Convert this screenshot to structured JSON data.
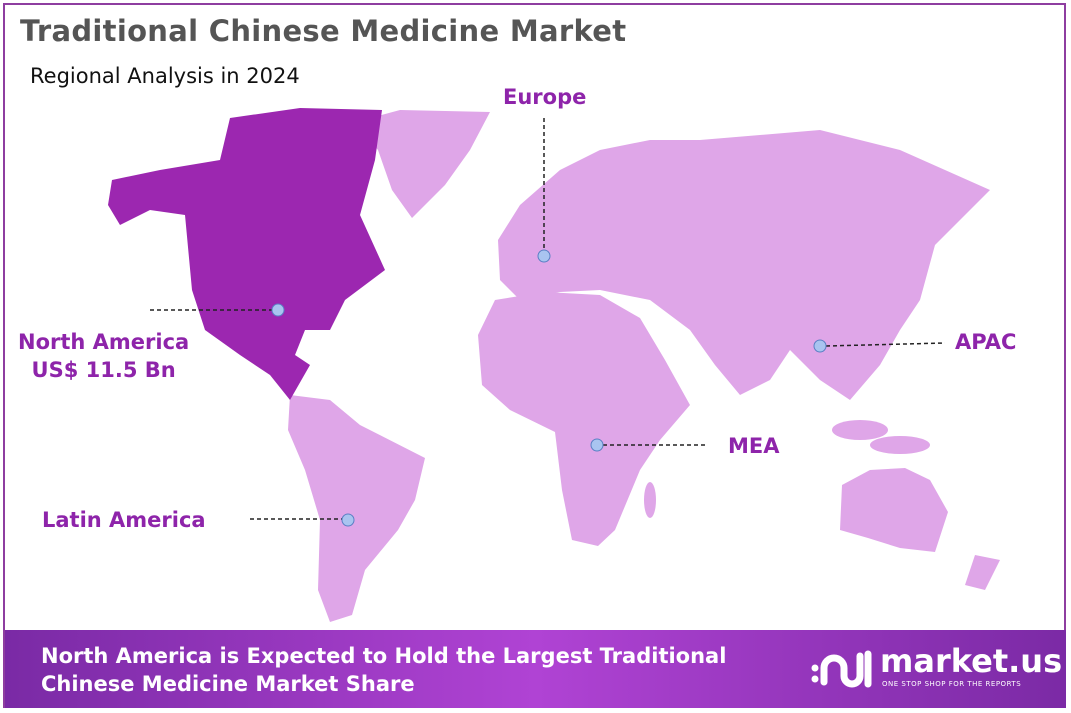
{
  "header": {
    "title": "Traditional Chinese Medicine Market",
    "subtitle": "Regional Analysis in 2024"
  },
  "regions": [
    {
      "name": "North America",
      "value": "US$ 11.5 Bn",
      "highlighted": true
    },
    {
      "name": "Europe"
    },
    {
      "name": "APAC"
    },
    {
      "name": "MEA"
    },
    {
      "name": "Latin America"
    }
  ],
  "colors": {
    "highlight": "#9c27b0",
    "other": "#dfa6e8",
    "label": "#8e24aa",
    "marker": "#a9c4f0"
  },
  "banner": {
    "line1": "North America is Expected to Hold the Largest Traditional",
    "line2": "Chinese Medicine Market Share"
  },
  "logo": {
    "name": "market.us",
    "tagline": "ONE STOP SHOP FOR THE REPORTS"
  }
}
